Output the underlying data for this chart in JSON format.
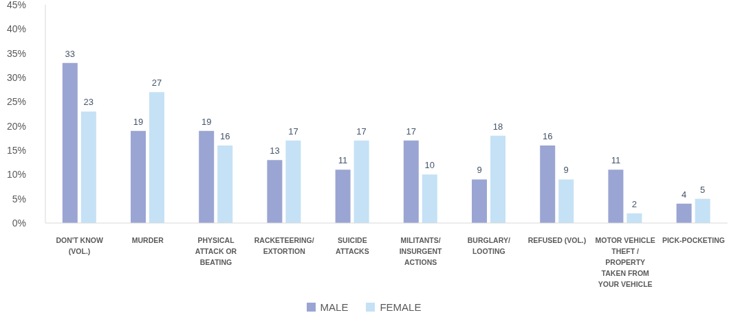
{
  "chart_data": {
    "type": "bar",
    "categories": [
      "DON'T KNOW (VOL.)",
      "MURDER",
      "PHYSICAL ATTACK OR BEATING",
      "RACKETEERING/ EXTORTION",
      "SUICIDE ATTACKS",
      "MILITANTS/ INSURGENT ACTIONS",
      "BURGLARY/ LOOTING",
      "REFUSED (VOL.)",
      "MOTOR VEHICLE THEFT / PROPERTY TAKEN FROM YOUR VEHICLE",
      "PICK-POCKETING"
    ],
    "series": [
      {
        "name": "MALE",
        "color": "#9aa5d3",
        "values": [
          33,
          19,
          19,
          13,
          11,
          17,
          9,
          16,
          11,
          4
        ]
      },
      {
        "name": "FEMALE",
        "color": "#c5e1f5",
        "values": [
          23,
          27,
          16,
          17,
          17,
          10,
          18,
          9,
          2,
          5
        ]
      }
    ],
    "ylim": [
      0,
      45
    ],
    "yticks": [
      {
        "value": 0,
        "label": "0%"
      },
      {
        "value": 5,
        "label": "5%"
      },
      {
        "value": 10,
        "label": "10%"
      },
      {
        "value": 15,
        "label": "15%"
      },
      {
        "value": 20,
        "label": "20%"
      },
      {
        "value": 25,
        "label": "25%"
      },
      {
        "value": 30,
        "label": "30%"
      },
      {
        "value": 35,
        "label": "35%"
      },
      {
        "value": 40,
        "label": "40%"
      },
      {
        "value": 45,
        "label": "45%"
      }
    ],
    "data_labels": true,
    "legend": "bottom"
  }
}
